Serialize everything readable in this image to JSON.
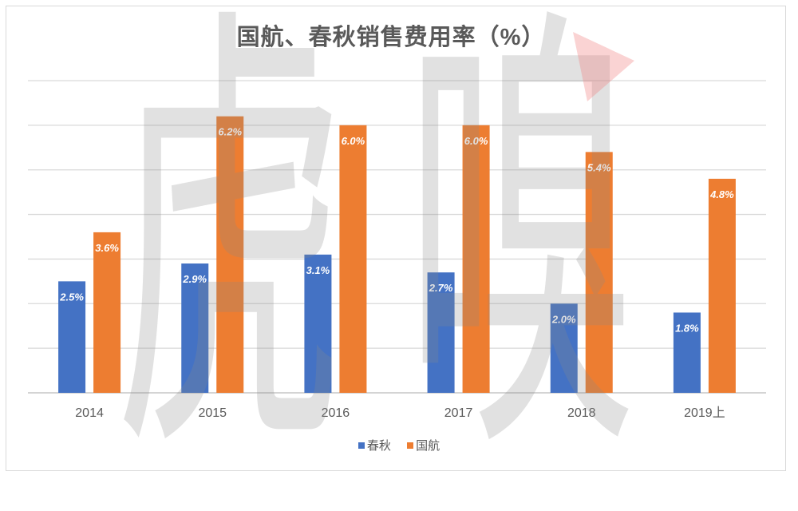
{
  "chart_data": {
    "type": "bar",
    "title": "国航、春秋销售费用率（%）",
    "categories": [
      "2014",
      "2015",
      "2016",
      "2017",
      "2018",
      "2019上"
    ],
    "series": [
      {
        "name": "春秋",
        "color": "#4472C4",
        "values": [
          2.5,
          2.9,
          3.1,
          2.7,
          2.0,
          1.8
        ],
        "labels": [
          "2.5%",
          "2.9%",
          "3.1%",
          "2.7%",
          "2.0%",
          "1.8%"
        ]
      },
      {
        "name": "国航",
        "color": "#ED7D31",
        "values": [
          3.6,
          6.2,
          6.0,
          6.0,
          5.4,
          4.8
        ],
        "labels": [
          "3.6%",
          "6.2%",
          "6.0%",
          "6.0%",
          "5.4%",
          "4.8%"
        ]
      }
    ],
    "ylim": [
      0,
      7
    ],
    "y_major_unit": 1,
    "grid": true,
    "legend": "bottom"
  },
  "watermark": {
    "text": "虎嗅",
    "logo_color": "#F08080"
  }
}
